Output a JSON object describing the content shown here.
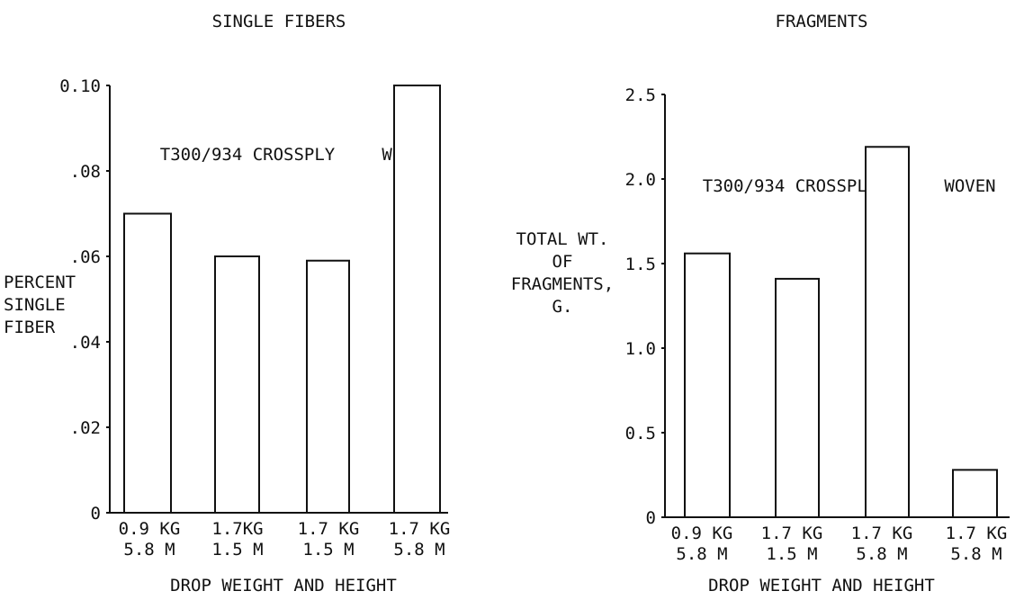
{
  "chart_data": [
    {
      "type": "bar",
      "title": "SINGLE FIBERS",
      "annotations": [
        "T300/934 CROSSPLY",
        "WOVEN"
      ],
      "ylabel": [
        "PERCENT",
        "SINGLE",
        "FIBER"
      ],
      "xlabel": "DROP WEIGHT AND HEIGHT",
      "categories": [
        [
          "0.9 KG",
          "5.8 M"
        ],
        [
          "1.7KG",
          "1.5 M"
        ],
        [
          "1.7 KG",
          "1.5 M"
        ],
        [
          "1.7 KG",
          "5.8 M"
        ]
      ],
      "values": [
        0.07,
        0.06,
        0.059,
        0.1
      ],
      "ylim": [
        0,
        0.1
      ],
      "yticks": [
        0,
        0.02,
        0.04,
        0.06,
        0.08,
        0.1
      ],
      "ytick_labels": [
        "0",
        ".02",
        ".04",
        ".06",
        ".08",
        "0.10"
      ]
    },
    {
      "type": "bar",
      "title": "FRAGMENTS",
      "annotations": [
        "T300/934 CROSSPLY",
        "WOVEN"
      ],
      "ylabel": [
        "TOTAL WT.",
        "OF",
        "FRAGMENTS,",
        "G."
      ],
      "xlabel": "DROP WEIGHT AND HEIGHT",
      "categories": [
        [
          "0.9 KG",
          "5.8 M"
        ],
        [
          "1.7 KG",
          "1.5 M"
        ],
        [
          "1.7 KG",
          "5.8 M"
        ],
        [
          "1.7 KG",
          "5.8 M"
        ]
      ],
      "values": [
        1.56,
        1.41,
        2.19,
        0.28
      ],
      "ylim": [
        0,
        2.5
      ],
      "yticks": [
        0,
        0.5,
        1.0,
        1.5,
        2.0,
        2.5
      ],
      "ytick_labels": [
        "0",
        "0.5",
        "1.0",
        "1.5",
        "2.0",
        "2.5"
      ]
    }
  ]
}
